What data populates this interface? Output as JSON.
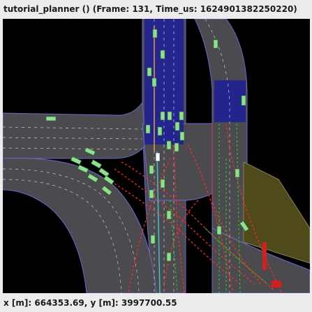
{
  "window": {
    "title": "tutorial_planner () (Frame: 131, Time_us: 1624901382250220)"
  },
  "statusbar": {
    "coords": "x [m]: 664353.69, y [m]: 3997700.55"
  },
  "colors": {
    "background": "#000000",
    "road": "#4a4a4f",
    "lane_border": "#7b7bd6",
    "crosswalk": "#1e1e9a",
    "parking": "#4e4a1c",
    "vehicle": "#8ee08e",
    "ego": "#ffffff",
    "red_path": "#ff2a2a",
    "green_path": "#22c022",
    "route": "#e0a040"
  },
  "icons": {
    "ego_vehicle": "car-icon",
    "agent": "car-icon"
  }
}
